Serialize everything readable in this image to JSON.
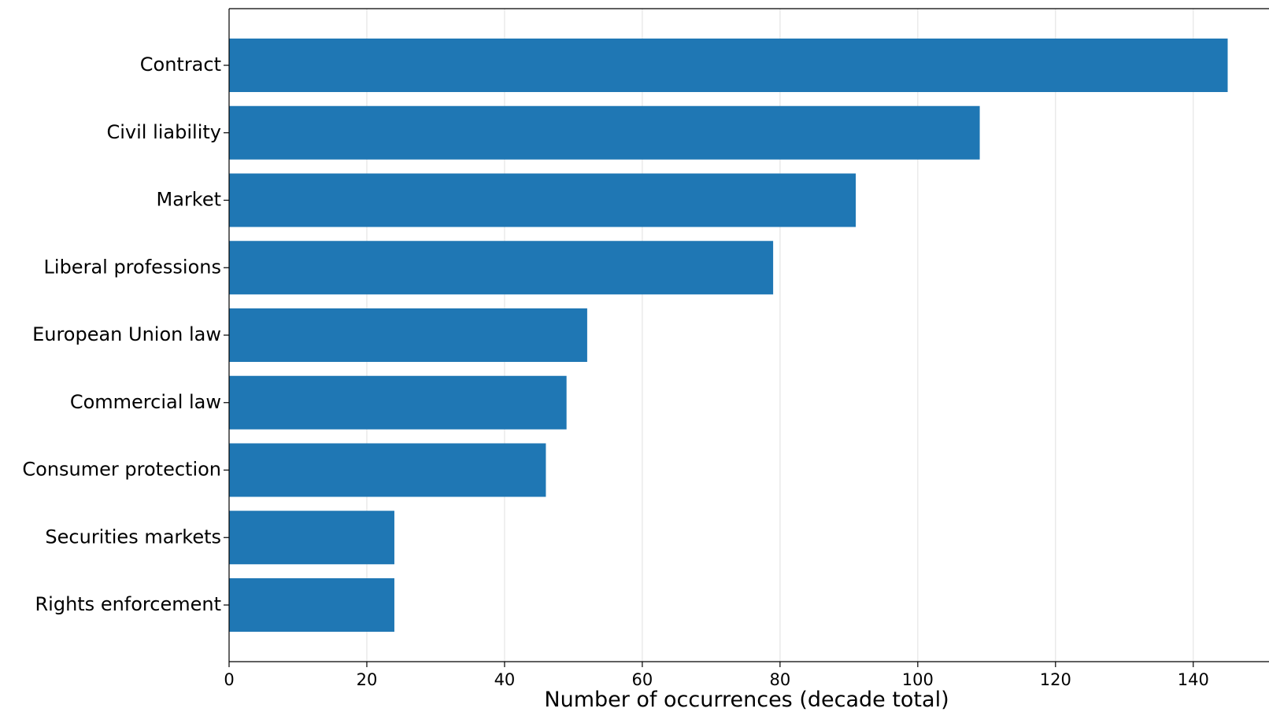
{
  "chart_data": {
    "type": "bar",
    "orientation": "horizontal",
    "categories": [
      "Contract",
      "Civil liability",
      "Market",
      "Liberal professions",
      "European Union law",
      "Commercial law",
      "Consumer protection",
      "Securities markets",
      "Rights enforcement"
    ],
    "values": [
      145,
      109,
      91,
      79,
      52,
      49,
      46,
      24,
      24
    ],
    "title": "",
    "xlabel": "Number of occurrences (decade total)",
    "ylabel": "",
    "xlim": [
      0,
      151
    ],
    "xticks": [
      0,
      20,
      40,
      60,
      80,
      100,
      120,
      140
    ],
    "grid": "vertical",
    "bar_color": "#1f77b4",
    "grid_color": "#e5e5e5"
  }
}
